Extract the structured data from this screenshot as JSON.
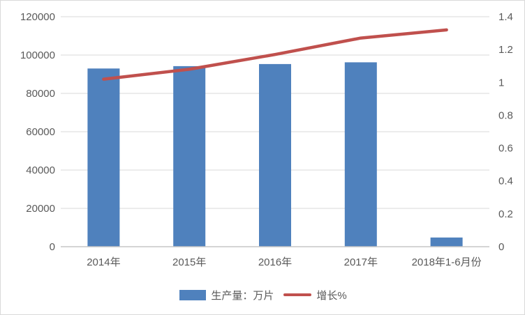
{
  "page": {
    "background": "#ffffff",
    "border_color": "#d9d9d9",
    "text_color": "#595959"
  },
  "chart_data": {
    "type": "bar",
    "title": "",
    "categories": [
      "2014年",
      "2015年",
      "2016年",
      "2017年",
      "2018年1-6月份"
    ],
    "series": [
      {
        "name": "生产量：万片",
        "type": "bar",
        "axis": "left",
        "color": "#4f81bd",
        "values": [
          93000,
          94200,
          95300,
          96200,
          4800
        ]
      },
      {
        "name": "增长%",
        "type": "line",
        "axis": "right",
        "color": "#c0504d",
        "values": [
          1.02,
          1.08,
          1.17,
          1.27,
          1.32
        ]
      }
    ],
    "left_axis": {
      "min": 0,
      "max": 120000,
      "step": 20000,
      "ticks": [
        "0",
        "20000",
        "40000",
        "60000",
        "80000",
        "100000",
        "120000"
      ]
    },
    "right_axis": {
      "min": 0,
      "max": 1.4,
      "step": 0.2,
      "ticks": [
        "0",
        "0.2",
        "0.4",
        "0.6",
        "0.8",
        "1",
        "1.2",
        "1.4"
      ]
    },
    "grid": true,
    "gridline_color": "#d9d9d9",
    "axis_line_color": "#c6c6c6",
    "legend": {
      "position": "bottom",
      "entries": [
        "生产量：万片",
        "增长%"
      ]
    }
  }
}
